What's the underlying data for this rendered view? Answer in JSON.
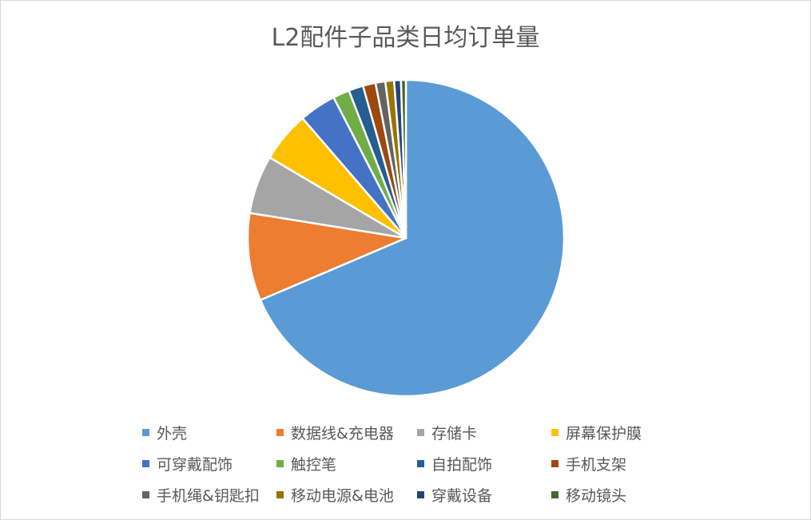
{
  "chart_data": {
    "type": "pie",
    "title": "L2配件子品类日均订单量",
    "start_angle_deg": 0,
    "direction": "clockwise",
    "legend_position": "bottom",
    "slices": [
      {
        "name": "外壳",
        "value": 69.0,
        "color": "#5b9bd5"
      },
      {
        "name": "数据线&充电器",
        "value": 9.0,
        "color": "#ed7d31"
      },
      {
        "name": "存储卡",
        "value": 6.0,
        "color": "#a5a5a5"
      },
      {
        "name": "屏幕保护膜",
        "value": 5.2,
        "color": "#ffc000"
      },
      {
        "name": "可穿戴配饰",
        "value": 3.8,
        "color": "#4472c4"
      },
      {
        "name": "触控笔",
        "value": 1.7,
        "color": "#70ad47"
      },
      {
        "name": "自拍配饰",
        "value": 1.5,
        "color": "#255e91"
      },
      {
        "name": "手机支架",
        "value": 1.3,
        "color": "#9e480e"
      },
      {
        "name": "手机绳&钥匙扣",
        "value": 1.0,
        "color": "#636363"
      },
      {
        "name": "移动电源&电池",
        "value": 0.9,
        "color": "#997300"
      },
      {
        "name": "穿戴设备",
        "value": 0.7,
        "color": "#264478"
      },
      {
        "name": "移动镜头",
        "value": 0.5,
        "color": "#43682b"
      }
    ]
  }
}
